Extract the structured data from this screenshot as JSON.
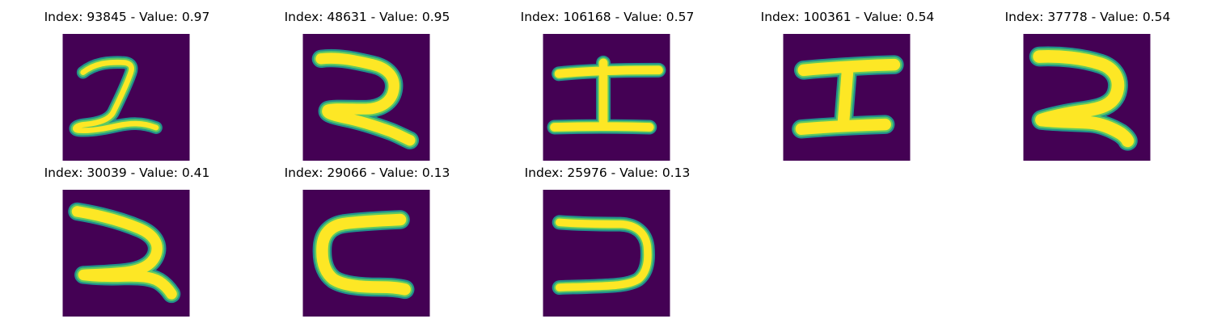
{
  "colors": {
    "background": "#440154",
    "stroke_core": "#fde725",
    "stroke_mid": "#5ec962",
    "stroke_edge": "#21918c"
  },
  "panels": [
    {
      "title": "Index: 93845 - Value: 0.97",
      "glyph": "two-loop"
    },
    {
      "title": "Index: 48631 - Value: 0.95",
      "glyph": "two-curl"
    },
    {
      "title": "Index: 106168 - Value: 0.57",
      "glyph": "i-beam-thin"
    },
    {
      "title": "Index: 100361 - Value: 0.54",
      "glyph": "i-beam-wide"
    },
    {
      "title": "Index: 37778 - Value: 0.54",
      "glyph": "two-bold"
    },
    {
      "title": "Index: 30039 - Value: 0.41",
      "glyph": "two-tall"
    },
    {
      "title": "Index: 29066 - Value: 0.13",
      "glyph": "c-shape"
    },
    {
      "title": "Index: 25976 - Value: 0.13",
      "glyph": "reverse-c-shape"
    }
  ]
}
